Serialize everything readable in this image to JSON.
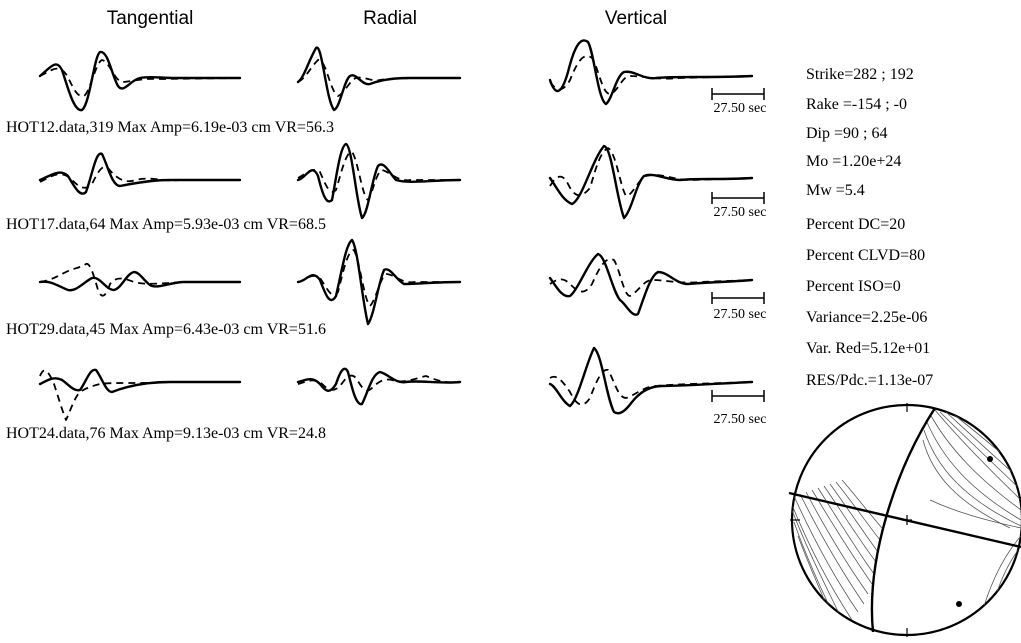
{
  "columns": [
    "Tangential",
    "Radial",
    "Vertical"
  ],
  "stations": [
    {
      "label": "HOT12.data,319  Max Amp=6.19e-03 cm  VR=56.3"
    },
    {
      "label": "HOT17.data,64  Max Amp=5.93e-03 cm  VR=68.5"
    },
    {
      "label": "HOT29.data,45  Max Amp=6.43e-03 cm  VR=51.6"
    },
    {
      "label": "HOT24.data,76  Max Amp=9.13e-03 cm  VR=24.8"
    }
  ],
  "scale_bar_label": "27.50 sec",
  "parameters": [
    "Strike=282 ; 192",
    "Rake  =-154 ; -0",
    "Dip   =90 ; 64",
    "Mo    =1.20e+24",
    "Mw    =5.4",
    "Percent DC=20",
    "Percent CLVD=80",
    "Percent ISO=0",
    "Variance=2.25e-06",
    "Var. Red=5.12e+01",
    "RES/Pdc.=1.13e-07"
  ],
  "legend": {
    "observed": "solid",
    "synthetic": "dashed"
  }
}
